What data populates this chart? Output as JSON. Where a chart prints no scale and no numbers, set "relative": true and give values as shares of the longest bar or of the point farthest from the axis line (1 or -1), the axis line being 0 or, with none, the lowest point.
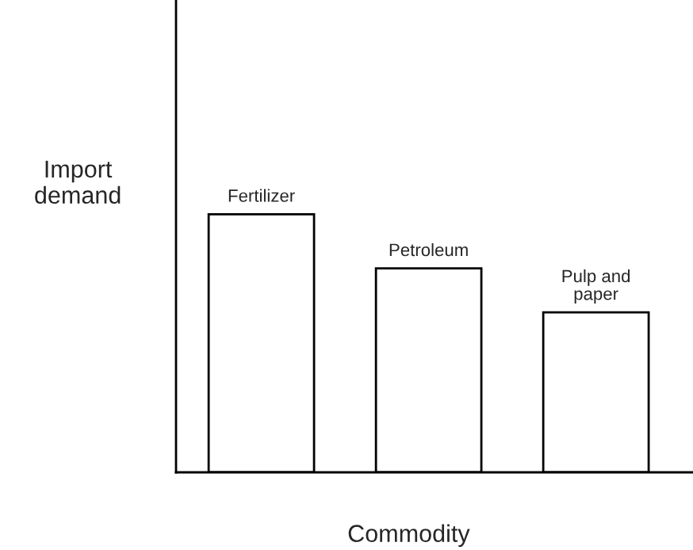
{
  "chart_data": {
    "type": "bar",
    "relative": true,
    "xlabel": "Commodity",
    "ylabel": "Import\ndemand",
    "categories": [
      "Fertilizer",
      "Petroleum",
      "Pulp and\npaper"
    ],
    "values": [
      1,
      0.79,
      0.62
    ],
    "color": "#ffffff"
  }
}
